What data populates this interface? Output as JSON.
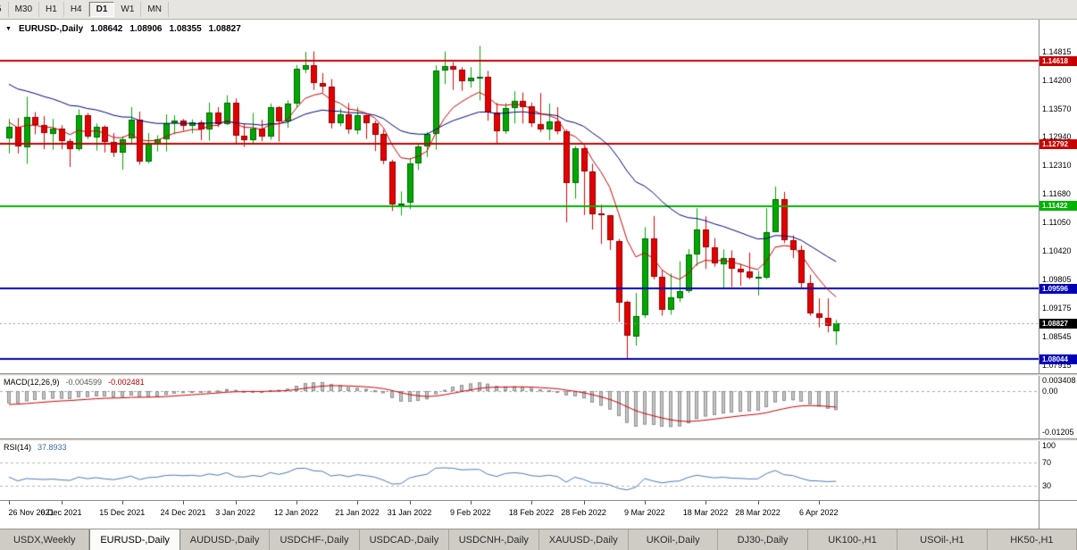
{
  "toolbar": {
    "timeframes": [
      {
        "label": "5",
        "active": false,
        "partial": true
      },
      {
        "label": "M30",
        "active": false
      },
      {
        "label": "H1",
        "active": false
      },
      {
        "label": "H4",
        "active": false
      },
      {
        "label": "D1",
        "active": true
      },
      {
        "label": "W1",
        "active": false
      },
      {
        "label": "MN",
        "active": false
      }
    ]
  },
  "header": {
    "dropdown_icon": "▼",
    "symbol": "EURUSD-,Daily",
    "open": "1.08642",
    "high": "1.08906",
    "low": "1.08355",
    "close": "1.08827"
  },
  "price_axis": {
    "ticks": [
      "1.14815",
      "1.14200",
      "1.13570",
      "1.12940",
      "1.12310",
      "1.11680",
      "1.11050",
      "1.10420",
      "1.09805",
      "1.09175",
      "1.08545",
      "1.07915"
    ],
    "tags": [
      {
        "label": "1.14618",
        "color": "#c80000",
        "line": true
      },
      {
        "label": "1.12792",
        "color": "#c80000",
        "line": true
      },
      {
        "label": "1.11422",
        "color": "#00b400",
        "line": true
      },
      {
        "label": "1.09596",
        "color": "#0000b8",
        "line": true
      },
      {
        "label": "1.08827",
        "color": "#000000",
        "line": false
      },
      {
        "label": "1.08044",
        "color": "#0000b8",
        "line": true
      }
    ]
  },
  "macd_panel": {
    "title": "MACD(12,26,9)",
    "value_main": "-0.004599",
    "value_signal": "-0.002481",
    "axis": [
      "0.003408",
      "0.00",
      "-0.01205"
    ]
  },
  "rsi_panel": {
    "title": "RSI(14)",
    "value": "37.8933",
    "axis": [
      "100",
      "70",
      "30"
    ]
  },
  "date_axis": {
    "labels": [
      {
        "i": 0,
        "t": "26 Nov 2021"
      },
      {
        "i": 6,
        "t": "6 Dec 2021"
      },
      {
        "i": 13,
        "t": "15 Dec 2021"
      },
      {
        "i": 20,
        "t": "24 Dec 2021"
      },
      {
        "i": 26,
        "t": "3 Jan 2022"
      },
      {
        "i": 33,
        "t": "12 Jan 2022"
      },
      {
        "i": 40,
        "t": "21 Jan 2022"
      },
      {
        "i": 46,
        "t": "31 Jan 2022"
      },
      {
        "i": 53,
        "t": "9 Feb 2022"
      },
      {
        "i": 60,
        "t": "18 Feb 2022"
      },
      {
        "i": 66,
        "t": "28 Feb 2022"
      },
      {
        "i": 73,
        "t": "9 Mar 2022"
      },
      {
        "i": 80,
        "t": "18 Mar 2022"
      },
      {
        "i": 86,
        "t": "28 Mar 2022"
      },
      {
        "i": 93,
        "t": "6 Apr 2022"
      }
    ]
  },
  "tabs": [
    {
      "label": "USDX,Weekly",
      "active": false
    },
    {
      "label": "EURUSD-,Daily",
      "active": true
    },
    {
      "label": "AUDUSD-,Daily",
      "active": false
    },
    {
      "label": "USDCHF-,Daily",
      "active": false
    },
    {
      "label": "USDCAD-,Daily",
      "active": false
    },
    {
      "label": "USDCNH-,Daily",
      "active": false
    },
    {
      "label": "XAUUSD-,Daily",
      "active": false
    },
    {
      "label": "UKOil-,Daily",
      "active": false
    },
    {
      "label": "DJ30-,Daily",
      "active": false
    },
    {
      "label": "UK100-,H1",
      "active": false
    },
    {
      "label": "USOil-,H1",
      "active": false
    },
    {
      "label": "HK50-,H1",
      "active": false
    }
  ],
  "chart_data": {
    "type": "candlestick",
    "title": "EURUSD-,Daily",
    "price_range": {
      "top": 1.1553,
      "bottom": 1.0773
    },
    "colors": {
      "bull": "#00a800",
      "bear": "#e60000",
      "bull_border": "#006400",
      "bear_border": "#8f0000",
      "ma_fast": "#cc0000",
      "ma_slow": "#000080",
      "macd_hist": "#c6c6c6",
      "macd_hist_border": "#8f8f8f",
      "macd_signal": "#cc0000",
      "rsi_line": "#4a7ab5",
      "grid_dash": "#a8a8a8"
    },
    "levels": [
      {
        "price": 1.14618,
        "color": "#c80000"
      },
      {
        "price": 1.12792,
        "color": "#c80000"
      },
      {
        "price": 1.11422,
        "color": "#00b400"
      },
      {
        "price": 1.09596,
        "color": "#0000b8"
      },
      {
        "price": 1.08044,
        "color": "#0000b8"
      }
    ],
    "current_bid": 1.08827,
    "candles": [
      [
        1.129,
        1.1334,
        1.1258,
        1.1316
      ],
      [
        1.1316,
        1.1336,
        1.1258,
        1.1272
      ],
      [
        1.1272,
        1.1383,
        1.1235,
        1.1338
      ],
      [
        1.1338,
        1.1349,
        1.13,
        1.132
      ],
      [
        1.132,
        1.134,
        1.1267,
        1.1302
      ],
      [
        1.1302,
        1.1334,
        1.1266,
        1.1313
      ],
      [
        1.1313,
        1.132,
        1.1267,
        1.1285
      ],
      [
        1.1285,
        1.129,
        1.1228,
        1.1267
      ],
      [
        1.1267,
        1.1355,
        1.1263,
        1.1342
      ],
      [
        1.1342,
        1.1347,
        1.129,
        1.1294
      ],
      [
        1.1294,
        1.1324,
        1.1264,
        1.1317
      ],
      [
        1.1317,
        1.132,
        1.126,
        1.1283
      ],
      [
        1.1283,
        1.1303,
        1.125,
        1.126
      ],
      [
        1.126,
        1.1296,
        1.1222,
        1.129
      ],
      [
        1.129,
        1.136,
        1.128,
        1.1332
      ],
      [
        1.1332,
        1.135,
        1.1233,
        1.124
      ],
      [
        1.124,
        1.1303,
        1.1236,
        1.128
      ],
      [
        1.128,
        1.1298,
        1.1262,
        1.1289
      ],
      [
        1.1289,
        1.1344,
        1.1262,
        1.1324
      ],
      [
        1.1324,
        1.1342,
        1.13,
        1.133
      ],
      [
        1.133,
        1.1334,
        1.1308,
        1.1318
      ],
      [
        1.1318,
        1.1333,
        1.1302,
        1.1326
      ],
      [
        1.1326,
        1.1331,
        1.1287,
        1.131
      ],
      [
        1.131,
        1.137,
        1.1286,
        1.1348
      ],
      [
        1.1348,
        1.136,
        1.1316,
        1.1323
      ],
      [
        1.1323,
        1.1386,
        1.132,
        1.137
      ],
      [
        1.137,
        1.1379,
        1.1279,
        1.1297
      ],
      [
        1.1297,
        1.1323,
        1.1272,
        1.1288
      ],
      [
        1.1288,
        1.1347,
        1.128,
        1.1313
      ],
      [
        1.1313,
        1.1332,
        1.1285,
        1.1295
      ],
      [
        1.1295,
        1.1368,
        1.1288,
        1.136
      ],
      [
        1.136,
        1.1362,
        1.1284,
        1.1329
      ],
      [
        1.1329,
        1.1375,
        1.1314,
        1.1368
      ],
      [
        1.1368,
        1.1453,
        1.136,
        1.1444
      ],
      [
        1.1444,
        1.1482,
        1.1435,
        1.1453
      ],
      [
        1.1453,
        1.1483,
        1.1398,
        1.1413
      ],
      [
        1.1413,
        1.1435,
        1.1392,
        1.1405
      ],
      [
        1.1405,
        1.1422,
        1.1313,
        1.1325
      ],
      [
        1.1325,
        1.1357,
        1.1318,
        1.1344
      ],
      [
        1.1344,
        1.1369,
        1.1301,
        1.131
      ],
      [
        1.131,
        1.136,
        1.13,
        1.1343
      ],
      [
        1.1343,
        1.1344,
        1.129,
        1.1325
      ],
      [
        1.1325,
        1.133,
        1.1263,
        1.13
      ],
      [
        1.13,
        1.131,
        1.1234,
        1.124
      ],
      [
        1.124,
        1.1244,
        1.1131,
        1.1145
      ],
      [
        1.1145,
        1.1174,
        1.1121,
        1.1148
      ],
      [
        1.1148,
        1.1248,
        1.1135,
        1.1235
      ],
      [
        1.1235,
        1.1279,
        1.1221,
        1.1273
      ],
      [
        1.1273,
        1.1305,
        1.125,
        1.1301
      ],
      [
        1.1301,
        1.1452,
        1.1266,
        1.144
      ],
      [
        1.144,
        1.1483,
        1.1411,
        1.145
      ],
      [
        1.145,
        1.1459,
        1.1398,
        1.1443
      ],
      [
        1.1443,
        1.1448,
        1.1396,
        1.1417
      ],
      [
        1.1417,
        1.1448,
        1.1403,
        1.1424
      ],
      [
        1.1424,
        1.1495,
        1.1375,
        1.1426
      ],
      [
        1.1426,
        1.144,
        1.133,
        1.1348
      ],
      [
        1.1348,
        1.1369,
        1.128,
        1.1306
      ],
      [
        1.1306,
        1.1369,
        1.1301,
        1.1358
      ],
      [
        1.1358,
        1.1395,
        1.1324,
        1.1374
      ],
      [
        1.1374,
        1.1392,
        1.1324,
        1.1361
      ],
      [
        1.1361,
        1.137,
        1.1316,
        1.1323
      ],
      [
        1.1323,
        1.1391,
        1.1305,
        1.1311
      ],
      [
        1.1311,
        1.1368,
        1.1287,
        1.1328
      ],
      [
        1.1328,
        1.136,
        1.13,
        1.1307
      ],
      [
        1.1307,
        1.1311,
        1.1106,
        1.1193
      ],
      [
        1.1193,
        1.1274,
        1.1158,
        1.127
      ],
      [
        1.127,
        1.1272,
        1.1122,
        1.1219
      ],
      [
        1.1219,
        1.1235,
        1.109,
        1.1125
      ],
      [
        1.1125,
        1.1145,
        1.1058,
        1.1121
      ],
      [
        1.1121,
        1.1122,
        1.1045,
        1.1065
      ],
      [
        1.1065,
        1.1069,
        1.0886,
        1.093
      ],
      [
        1.093,
        1.0933,
        1.0806,
        1.0855
      ],
      [
        1.0855,
        1.095,
        1.0834,
        1.09
      ],
      [
        1.09,
        1.1095,
        1.0895,
        1.107
      ],
      [
        1.107,
        1.112,
        1.098,
        1.0985
      ],
      [
        1.0985,
        1.1,
        1.09,
        1.0912
      ],
      [
        1.0912,
        1.0993,
        1.0902,
        1.094
      ],
      [
        1.094,
        1.102,
        1.093,
        1.0955
      ],
      [
        1.0955,
        1.1047,
        1.095,
        1.1035
      ],
      [
        1.1035,
        1.1137,
        1.1009,
        1.109
      ],
      [
        1.109,
        1.1119,
        1.1003,
        1.105
      ],
      [
        1.105,
        1.1071,
        1.1008,
        1.1015
      ],
      [
        1.1015,
        1.1046,
        1.0962,
        1.1028
      ],
      [
        1.1028,
        1.1044,
        1.0963,
        1.1004
      ],
      [
        1.1004,
        1.1014,
        1.0966,
        1.0997
      ],
      [
        1.0997,
        1.1039,
        1.098,
        1.0983
      ],
      [
        1.0983,
        1.0999,
        1.0944,
        1.0985
      ],
      [
        1.0985,
        1.1137,
        1.098,
        1.1085
      ],
      [
        1.1085,
        1.1185,
        1.1084,
        1.1158
      ],
      [
        1.1158,
        1.1173,
        1.106,
        1.1067
      ],
      [
        1.1067,
        1.1077,
        1.1027,
        1.1045
      ],
      [
        1.1045,
        1.1055,
        1.096,
        1.0972
      ],
      [
        1.0972,
        1.099,
        1.09,
        1.0905
      ],
      [
        1.0905,
        1.0938,
        1.0874,
        1.0895
      ],
      [
        1.0895,
        1.0938,
        1.0863,
        1.0877
      ],
      [
        1.08642,
        1.08906,
        1.08355,
        1.08827
      ]
    ],
    "indicators": {
      "macd": {
        "label": "MACD(12,26,9)",
        "current_main": -0.004599,
        "current_signal": -0.002481,
        "axis_max": 0.003408,
        "axis_min": -0.01205
      },
      "rsi": {
        "label": "RSI(14)",
        "current": 37.8933,
        "levels": [
          70,
          30
        ]
      }
    }
  }
}
